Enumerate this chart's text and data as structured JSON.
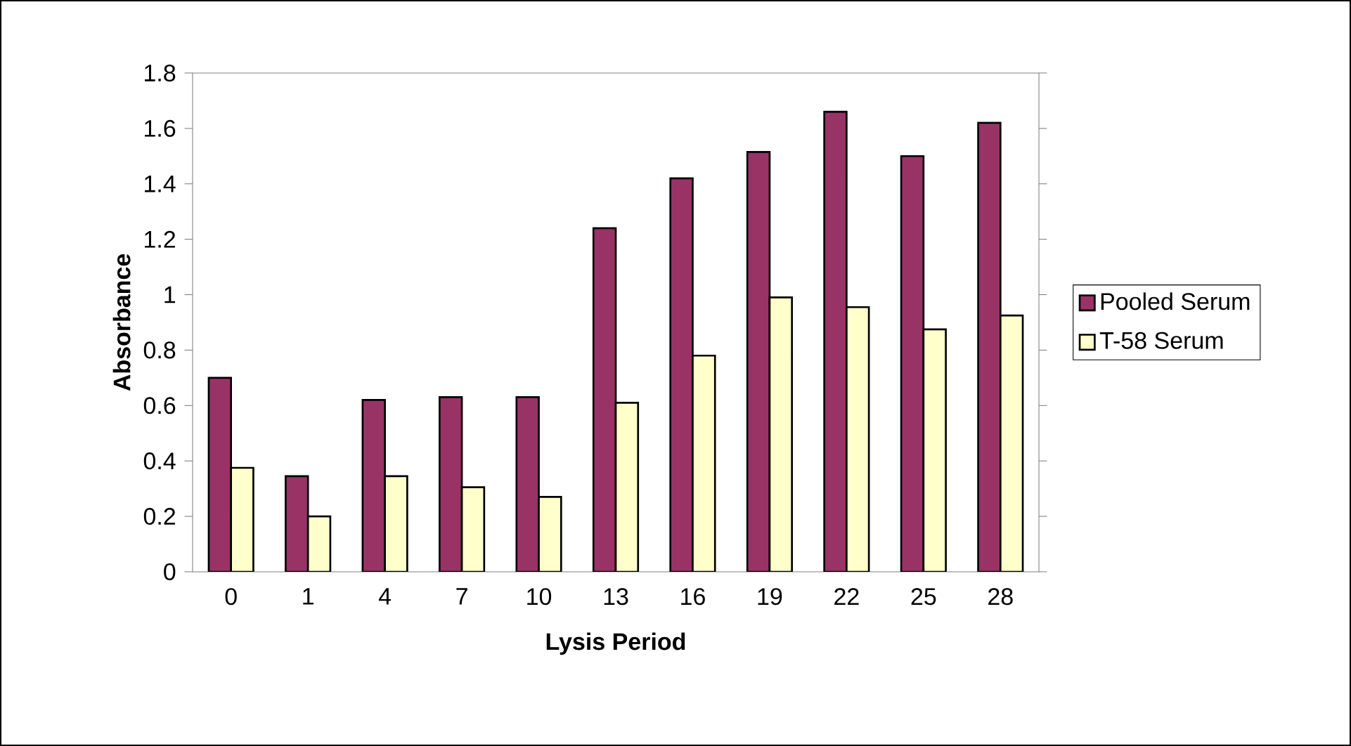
{
  "chart_data": {
    "type": "bar",
    "xlabel": "Lysis Period",
    "ylabel": "Absorbance",
    "categories": [
      "0",
      "1",
      "4",
      "7",
      "10",
      "13",
      "16",
      "19",
      "22",
      "25",
      "28"
    ],
    "series": [
      {
        "name": "Pooled Serum",
        "color": "#993366",
        "values": [
          0.7,
          0.345,
          0.62,
          0.63,
          0.63,
          1.24,
          1.42,
          1.515,
          1.66,
          1.5,
          1.62
        ]
      },
      {
        "name": "T-58 Serum",
        "color": "#ffffcc",
        "values": [
          0.375,
          0.2,
          0.345,
          0.305,
          0.27,
          0.61,
          0.78,
          0.99,
          0.955,
          0.875,
          0.925
        ]
      }
    ],
    "ylim": [
      0,
      1.8
    ],
    "yticks": [
      0,
      0.2,
      0.4,
      0.6,
      0.8,
      1,
      1.2,
      1.4,
      1.6,
      1.8
    ],
    "legend": "right"
  }
}
